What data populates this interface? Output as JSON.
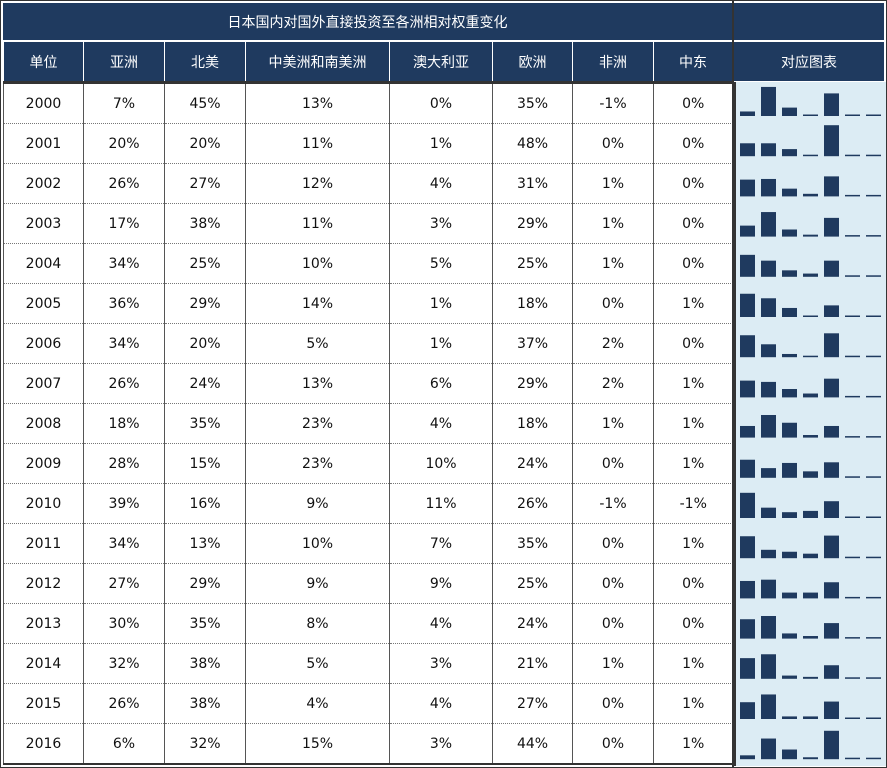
{
  "title": "日本国内对国外直接投资至各洲相对权重变化",
  "headers": [
    "单位",
    "亚洲",
    "北美",
    "中美洲和南美洲",
    "澳大利亚",
    "欧洲",
    "非洲",
    "中东"
  ],
  "chart_header": "对应图表",
  "rows": [
    [
      "2000",
      "7%",
      "45%",
      "13%",
      "0%",
      "35%",
      "-1%",
      "0%"
    ],
    [
      "2001",
      "20%",
      "20%",
      "11%",
      "1%",
      "48%",
      "0%",
      "0%"
    ],
    [
      "2002",
      "26%",
      "27%",
      "12%",
      "4%",
      "31%",
      "1%",
      "0%"
    ],
    [
      "2003",
      "17%",
      "38%",
      "11%",
      "3%",
      "29%",
      "1%",
      "0%"
    ],
    [
      "2004",
      "34%",
      "25%",
      "10%",
      "5%",
      "25%",
      "1%",
      "0%"
    ],
    [
      "2005",
      "36%",
      "29%",
      "14%",
      "1%",
      "18%",
      "0%",
      "1%"
    ],
    [
      "2006",
      "34%",
      "20%",
      "5%",
      "1%",
      "37%",
      "2%",
      "0%"
    ],
    [
      "2007",
      "26%",
      "24%",
      "13%",
      "6%",
      "29%",
      "2%",
      "1%"
    ],
    [
      "2008",
      "18%",
      "35%",
      "23%",
      "4%",
      "18%",
      "1%",
      "1%"
    ],
    [
      "2009",
      "28%",
      "15%",
      "23%",
      "10%",
      "24%",
      "0%",
      "1%"
    ],
    [
      "2010",
      "39%",
      "16%",
      "9%",
      "11%",
      "26%",
      "-1%",
      "-1%"
    ],
    [
      "2011",
      "34%",
      "13%",
      "10%",
      "7%",
      "35%",
      "0%",
      "1%"
    ],
    [
      "2012",
      "27%",
      "29%",
      "9%",
      "9%",
      "25%",
      "0%",
      "0%"
    ],
    [
      "2013",
      "30%",
      "35%",
      "8%",
      "4%",
      "24%",
      "0%",
      "0%"
    ],
    [
      "2014",
      "32%",
      "38%",
      "5%",
      "3%",
      "21%",
      "1%",
      "1%"
    ],
    [
      "2015",
      "26%",
      "38%",
      "4%",
      "4%",
      "27%",
      "0%",
      "1%"
    ],
    [
      "2016",
      "6%",
      "32%",
      "15%",
      "3%",
      "44%",
      "0%",
      "1%"
    ]
  ],
  "colors": {
    "header_bg": "#1f3a5f",
    "bar": "#1f3a5f",
    "sparkline_bg": "#dcecf4"
  },
  "chart_data": {
    "type": "table",
    "title": "日本国内对国外直接投资至各洲相对权重变化",
    "columns": [
      "单位",
      "亚洲",
      "北美",
      "中美洲和南美洲",
      "澳大利亚",
      "欧洲",
      "非洲",
      "中东"
    ],
    "sparkline": {
      "type": "bar",
      "label": "对应图表",
      "categories": [
        "亚洲",
        "北美",
        "中美洲和南美洲",
        "澳大利亚",
        "欧洲",
        "非洲",
        "中东"
      ],
      "unit": "%",
      "ylim": [
        0,
        48
      ],
      "series": [
        {
          "name": "2000",
          "values": [
            7,
            45,
            13,
            0,
            35,
            -1,
            0
          ]
        },
        {
          "name": "2001",
          "values": [
            20,
            20,
            11,
            1,
            48,
            0,
            0
          ]
        },
        {
          "name": "2002",
          "values": [
            26,
            27,
            12,
            4,
            31,
            1,
            0
          ]
        },
        {
          "name": "2003",
          "values": [
            17,
            38,
            11,
            3,
            29,
            1,
            0
          ]
        },
        {
          "name": "2004",
          "values": [
            34,
            25,
            10,
            5,
            25,
            1,
            0
          ]
        },
        {
          "name": "2005",
          "values": [
            36,
            29,
            14,
            1,
            18,
            0,
            1
          ]
        },
        {
          "name": "2006",
          "values": [
            34,
            20,
            5,
            1,
            37,
            2,
            0
          ]
        },
        {
          "name": "2007",
          "values": [
            26,
            24,
            13,
            6,
            29,
            2,
            1
          ]
        },
        {
          "name": "2008",
          "values": [
            18,
            35,
            23,
            4,
            18,
            1,
            1
          ]
        },
        {
          "name": "2009",
          "values": [
            28,
            15,
            23,
            10,
            24,
            0,
            1
          ]
        },
        {
          "name": "2010",
          "values": [
            39,
            16,
            9,
            11,
            26,
            -1,
            -1
          ]
        },
        {
          "name": "2011",
          "values": [
            34,
            13,
            10,
            7,
            35,
            0,
            1
          ]
        },
        {
          "name": "2012",
          "values": [
            27,
            29,
            9,
            9,
            25,
            0,
            0
          ]
        },
        {
          "name": "2013",
          "values": [
            30,
            35,
            8,
            4,
            24,
            0,
            0
          ]
        },
        {
          "name": "2014",
          "values": [
            32,
            38,
            5,
            3,
            21,
            1,
            1
          ]
        },
        {
          "name": "2015",
          "values": [
            26,
            38,
            4,
            4,
            27,
            0,
            1
          ]
        },
        {
          "name": "2016",
          "values": [
            6,
            32,
            15,
            3,
            44,
            0,
            1
          ]
        }
      ]
    }
  }
}
